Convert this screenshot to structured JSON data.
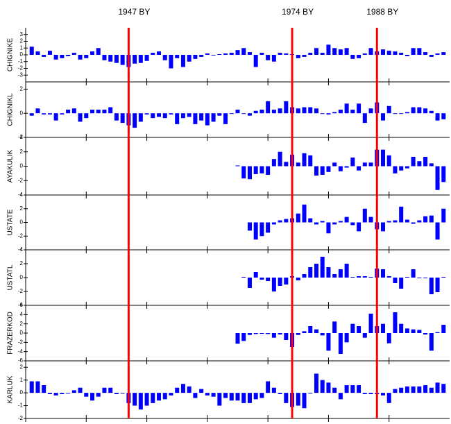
{
  "annotations": {
    "color": "#ff0000",
    "items": [
      {
        "x": 1947,
        "label": "1947 BY"
      },
      {
        "x": 1974,
        "label": "1974 BY"
      },
      {
        "x": 1988,
        "label": "1988 BY"
      }
    ]
  },
  "chart_data": [
    {
      "type": "bar",
      "ylabel": "CHIGNIKE",
      "color": "#0000ff",
      "xlim": [
        1930,
        2000
      ],
      "xticks": [
        1930,
        1940,
        1950,
        1960,
        1970,
        1980,
        1990
      ],
      "ylim": [
        -4,
        4
      ],
      "yticks": [
        -3,
        -2,
        -1,
        0,
        1,
        2,
        3
      ],
      "x": [
        1931,
        1932,
        1933,
        1934,
        1935,
        1936,
        1937,
        1938,
        1939,
        1940,
        1941,
        1942,
        1943,
        1944,
        1945,
        1946,
        1947,
        1948,
        1949,
        1950,
        1951,
        1952,
        1953,
        1954,
        1955,
        1956,
        1957,
        1958,
        1959,
        1960,
        1961,
        1962,
        1963,
        1964,
        1965,
        1966,
        1967,
        1968,
        1969,
        1970,
        1971,
        1972,
        1973,
        1974,
        1975,
        1976,
        1977,
        1978,
        1979,
        1980,
        1981,
        1982,
        1983,
        1984,
        1985,
        1986,
        1987,
        1988,
        1989,
        1990,
        1991,
        1992,
        1993,
        1994,
        1995,
        1996,
        1997,
        1998,
        1999
      ],
      "values": [
        1.2,
        0.5,
        -0.3,
        0.6,
        -0.7,
        -0.5,
        -0.2,
        0.3,
        -0.7,
        -0.5,
        0.5,
        1.0,
        -0.8,
        -1.0,
        -1.2,
        -1.5,
        -1.8,
        -1.3,
        -1.2,
        -0.9,
        0.3,
        0.5,
        -0.8,
        -2.0,
        -0.5,
        -1.8,
        -1.0,
        -0.6,
        -0.3,
        0.2,
        -0.1,
        0.1,
        0.2,
        0.3,
        0.7,
        1.0,
        0.4,
        -1.8,
        0.3,
        -0.8,
        -1.0,
        0.3,
        0.2,
        0.1,
        -0.5,
        -0.3,
        0.3,
        1.0,
        0.3,
        1.5,
        1.0,
        0.8,
        1.0,
        -0.6,
        -0.5,
        0.2,
        1.0,
        0.5,
        0.8,
        0.6,
        0.5,
        0.3,
        -0.2,
        1.0,
        1.0,
        0.4,
        -0.3,
        0.2,
        0.4
      ]
    },
    {
      "type": "bar",
      "ylabel": "CHIGNIKL",
      "color": "#0000ff",
      "xlim": [
        1930,
        2000
      ],
      "xticks": [
        1930,
        1940,
        1950,
        1960,
        1970,
        1980,
        1990
      ],
      "ylim": [
        -2,
        2.6
      ],
      "yticks": [
        -2,
        0,
        2
      ],
      "x": [
        1931,
        1932,
        1933,
        1934,
        1935,
        1936,
        1937,
        1938,
        1939,
        1940,
        1941,
        1942,
        1943,
        1944,
        1945,
        1946,
        1947,
        1948,
        1949,
        1950,
        1951,
        1952,
        1953,
        1954,
        1955,
        1956,
        1957,
        1958,
        1959,
        1960,
        1961,
        1962,
        1963,
        1964,
        1965,
        1966,
        1967,
        1968,
        1969,
        1970,
        1971,
        1972,
        1973,
        1974,
        1975,
        1976,
        1977,
        1978,
        1979,
        1980,
        1981,
        1982,
        1983,
        1984,
        1985,
        1986,
        1987,
        1988,
        1989,
        1990,
        1991,
        1992,
        1993,
        1994,
        1995,
        1996,
        1997,
        1998,
        1999
      ],
      "values": [
        -0.2,
        0.4,
        -0.1,
        -0.1,
        -0.6,
        -0.1,
        0.3,
        0.4,
        -0.7,
        -0.4,
        0.3,
        0.3,
        0.3,
        0.5,
        -0.6,
        -0.8,
        -1.0,
        -1.2,
        -0.7,
        -0.1,
        -0.4,
        -0.3,
        -0.4,
        -0.1,
        -0.9,
        -0.4,
        -0.3,
        -0.9,
        -0.6,
        -1.0,
        -0.7,
        -0.2,
        -0.9,
        0.0,
        0.3,
        0.0,
        -0.2,
        0.2,
        0.3,
        1.0,
        0.3,
        0.4,
        1.0,
        0.5,
        0.4,
        0.5,
        0.5,
        0.4,
        0.0,
        -0.1,
        0.1,
        0.3,
        0.8,
        0.3,
        0.8,
        -0.8,
        0.4,
        0.9,
        -0.6,
        0.6,
        0.0,
        0.0,
        0.1,
        0.5,
        0.5,
        0.4,
        0.2,
        -0.6,
        -0.5
      ]
    },
    {
      "type": "bar",
      "ylabel": "AYAKULIK",
      "color": "#0000ff",
      "xlim": [
        1930,
        2000
      ],
      "xticks": [
        1930,
        1940,
        1950,
        1960,
        1970,
        1980,
        1990
      ],
      "ylim": [
        -4,
        4
      ],
      "yticks": [
        -4,
        -2,
        0,
        2,
        4
      ],
      "x": [
        1965,
        1966,
        1967,
        1968,
        1969,
        1970,
        1971,
        1972,
        1973,
        1974,
        1975,
        1976,
        1977,
        1978,
        1979,
        1980,
        1981,
        1982,
        1983,
        1984,
        1985,
        1986,
        1987,
        1988,
        1989,
        1990,
        1991,
        1992,
        1993,
        1994,
        1995,
        1996,
        1997,
        1998,
        1999
      ],
      "values": [
        0.1,
        -1.7,
        -1.8,
        -1.1,
        -1.0,
        -1.2,
        1.0,
        2.0,
        0.6,
        1.6,
        0.5,
        1.8,
        1.5,
        -1.3,
        -1.2,
        -0.8,
        0.5,
        -0.7,
        -0.2,
        1.2,
        -0.6,
        0.5,
        0.5,
        2.3,
        2.3,
        1.5,
        -1.0,
        -0.6,
        -0.3,
        1.3,
        0.7,
        1.3,
        0.4,
        -3.3,
        -2.2
      ]
    },
    {
      "type": "bar",
      "ylabel": "USTATE",
      "color": "#0000ff",
      "xlim": [
        1930,
        2000
      ],
      "xticks": [
        1930,
        1940,
        1950,
        1960,
        1970,
        1980,
        1990
      ],
      "ylim": [
        -4,
        4
      ],
      "yticks": [
        -4,
        -2,
        0,
        2,
        4
      ],
      "x": [
        1967,
        1968,
        1969,
        1970,
        1971,
        1972,
        1973,
        1974,
        1975,
        1976,
        1977,
        1978,
        1979,
        1980,
        1981,
        1982,
        1983,
        1984,
        1985,
        1986,
        1987,
        1988,
        1989,
        1990,
        1991,
        1992,
        1993,
        1994,
        1995,
        1996,
        1997,
        1998,
        1999
      ],
      "values": [
        -1.2,
        -2.5,
        -2.0,
        -1.5,
        -0.3,
        0.3,
        0.5,
        0.6,
        1.3,
        2.6,
        0.6,
        -0.3,
        0.2,
        -1.6,
        -0.3,
        0.2,
        0.8,
        -0.4,
        -1.3,
        2.0,
        0.8,
        -1.0,
        -1.3,
        0.2,
        0.3,
        2.3,
        0.4,
        -0.2,
        0.3,
        0.9,
        1.0,
        -2.5,
        2.0
      ]
    },
    {
      "type": "bar",
      "ylabel": "USTATL",
      "color": "#0000ff",
      "xlim": [
        1930,
        2000
      ],
      "xticks": [
        1930,
        1940,
        1950,
        1960,
        1970,
        1980,
        1990
      ],
      "ylim": [
        -4,
        4
      ],
      "yticks": [
        -4,
        -2,
        0,
        2,
        4
      ],
      "x": [
        1966,
        1967,
        1968,
        1969,
        1970,
        1971,
        1972,
        1973,
        1974,
        1975,
        1976,
        1977,
        1978,
        1979,
        1980,
        1981,
        1982,
        1983,
        1984,
        1985,
        1986,
        1987,
        1988,
        1989,
        1990,
        1991,
        1992,
        1993,
        1994,
        1995,
        1996,
        1997,
        1998,
        1999
      ],
      "values": [
        0.1,
        -1.5,
        0.8,
        -0.3,
        -0.5,
        -2.0,
        -1.2,
        -1.0,
        0.2,
        -0.4,
        0.5,
        1.5,
        2.0,
        3.0,
        1.5,
        0.5,
        1.2,
        2.0,
        0.1,
        0.2,
        0.2,
        0.1,
        1.3,
        1.2,
        0.2,
        -0.8,
        -1.6,
        0.1,
        1.2,
        -0.1,
        -0.1,
        -2.4,
        -2.1,
        0.1
      ]
    },
    {
      "type": "bar",
      "ylabel": "FRAZERKOD",
      "color": "#0000ff",
      "xlim": [
        1930,
        2000
      ],
      "xticks": [
        1930,
        1940,
        1950,
        1960,
        1970,
        1980,
        1990
      ],
      "ylim": [
        -6,
        6
      ],
      "yticks": [
        -6,
        -4,
        -2,
        0,
        2,
        4,
        6
      ],
      "x": [
        1965,
        1966,
        1967,
        1968,
        1969,
        1970,
        1971,
        1972,
        1973,
        1974,
        1975,
        1976,
        1977,
        1978,
        1979,
        1980,
        1981,
        1982,
        1983,
        1984,
        1985,
        1986,
        1987,
        1988,
        1989,
        1990,
        1991,
        1992,
        1993,
        1994,
        1995,
        1996,
        1997,
        1998,
        1999
      ],
      "values": [
        -2.3,
        -1.7,
        -0.4,
        -0.2,
        -0.1,
        -0.2,
        -1.0,
        -0.3,
        -1.5,
        -3.0,
        -0.4,
        0.4,
        1.5,
        0.8,
        -0.5,
        -3.8,
        2.5,
        -4.5,
        -2.0,
        2.0,
        1.5,
        -1.0,
        4.2,
        1.5,
        2.0,
        -2.2,
        4.5,
        2.0,
        1.0,
        0.8,
        0.7,
        -0.3,
        -3.8,
        0.2,
        1.8
      ]
    },
    {
      "type": "bar",
      "ylabel": "KARLUK",
      "color": "#0000ff",
      "xlim": [
        1930,
        2000
      ],
      "xticks": [
        1930,
        1940,
        1950,
        1960,
        1970,
        1980,
        1990
      ],
      "ylim": [
        -2,
        2.5
      ],
      "yticks": [
        -2,
        -1,
        0,
        1,
        2
      ],
      "x": [
        1931,
        1932,
        1933,
        1934,
        1935,
        1936,
        1937,
        1938,
        1939,
        1940,
        1941,
        1942,
        1943,
        1944,
        1945,
        1946,
        1947,
        1948,
        1949,
        1950,
        1951,
        1952,
        1953,
        1954,
        1955,
        1956,
        1957,
        1958,
        1959,
        1960,
        1961,
        1962,
        1963,
        1964,
        1965,
        1966,
        1967,
        1968,
        1969,
        1970,
        1971,
        1972,
        1973,
        1974,
        1975,
        1976,
        1977,
        1978,
        1979,
        1980,
        1981,
        1982,
        1983,
        1984,
        1985,
        1986,
        1987,
        1988,
        1989,
        1990,
        1991,
        1992,
        1993,
        1994,
        1995,
        1996,
        1997,
        1998,
        1999
      ],
      "values": [
        0.9,
        0.9,
        0.6,
        -0.1,
        -0.2,
        -0.1,
        0.0,
        0.2,
        0.4,
        -0.3,
        -0.6,
        -0.3,
        0.4,
        0.4,
        -0.1,
        0.0,
        -0.8,
        -1.0,
        -1.3,
        -1.0,
        -0.8,
        -0.6,
        -0.5,
        -0.2,
        0.4,
        0.7,
        0.5,
        -0.4,
        0.3,
        -0.2,
        -0.3,
        -1.0,
        -0.4,
        -0.6,
        -0.6,
        -0.8,
        -0.8,
        -0.5,
        -0.4,
        0.9,
        0.4,
        -0.1,
        -0.8,
        -1.1,
        -1.0,
        -1.2,
        0.0,
        1.5,
        1.0,
        0.8,
        0.4,
        -0.5,
        0.6,
        0.6,
        0.6,
        -0.1,
        -0.1,
        -0.1,
        -0.2,
        -0.8,
        0.3,
        0.4,
        0.5,
        0.5,
        0.5,
        0.6,
        0.4,
        0.8,
        0.7
      ]
    }
  ]
}
